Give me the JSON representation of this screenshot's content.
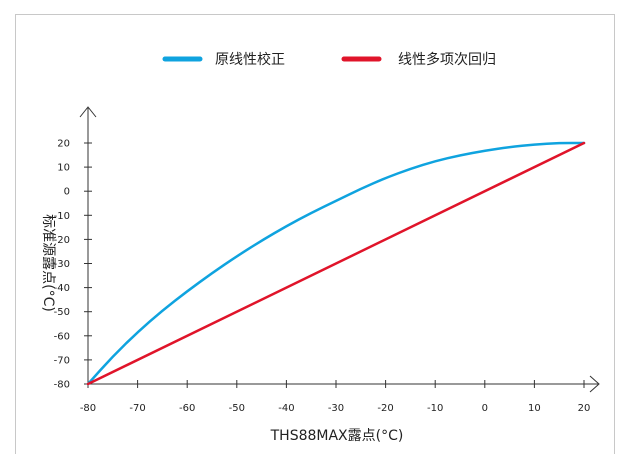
{
  "chart_data": {
    "type": "line",
    "xlabel": "THS88MAX露点(°C)",
    "ylabel": "标准源露点(°C)",
    "xlim": [
      -80,
      20
    ],
    "ylim": [
      -80,
      20
    ],
    "x_ticks": [
      -80,
      -70,
      -60,
      -50,
      -40,
      -30,
      -20,
      -10,
      0,
      10,
      20
    ],
    "y_ticks": [
      -80,
      -70,
      -60,
      -50,
      -40,
      -30,
      -20,
      -10,
      0,
      10,
      20
    ],
    "grid": false,
    "legend_position": "top",
    "series": [
      {
        "name": "原线性校正",
        "color": "#0fa3df",
        "x": [
          -80,
          -75,
          -70,
          -65,
          -60,
          -55,
          -50,
          -45,
          -40,
          -35,
          -30,
          -25,
          -20,
          -15,
          -10,
          -5,
          0,
          5,
          10,
          15,
          20
        ],
        "y": [
          -80,
          -68.5,
          -58.5,
          -49.5,
          -41.5,
          -34,
          -27,
          -20.5,
          -14.5,
          -9,
          -4,
          1,
          5.5,
          9.3,
          12.5,
          14.9,
          16.8,
          18.3,
          19.4,
          20,
          20
        ]
      },
      {
        "name": "线性多项次回归",
        "color": "#e0142a",
        "x": [
          -80,
          20
        ],
        "y": [
          -80,
          20
        ]
      }
    ]
  }
}
